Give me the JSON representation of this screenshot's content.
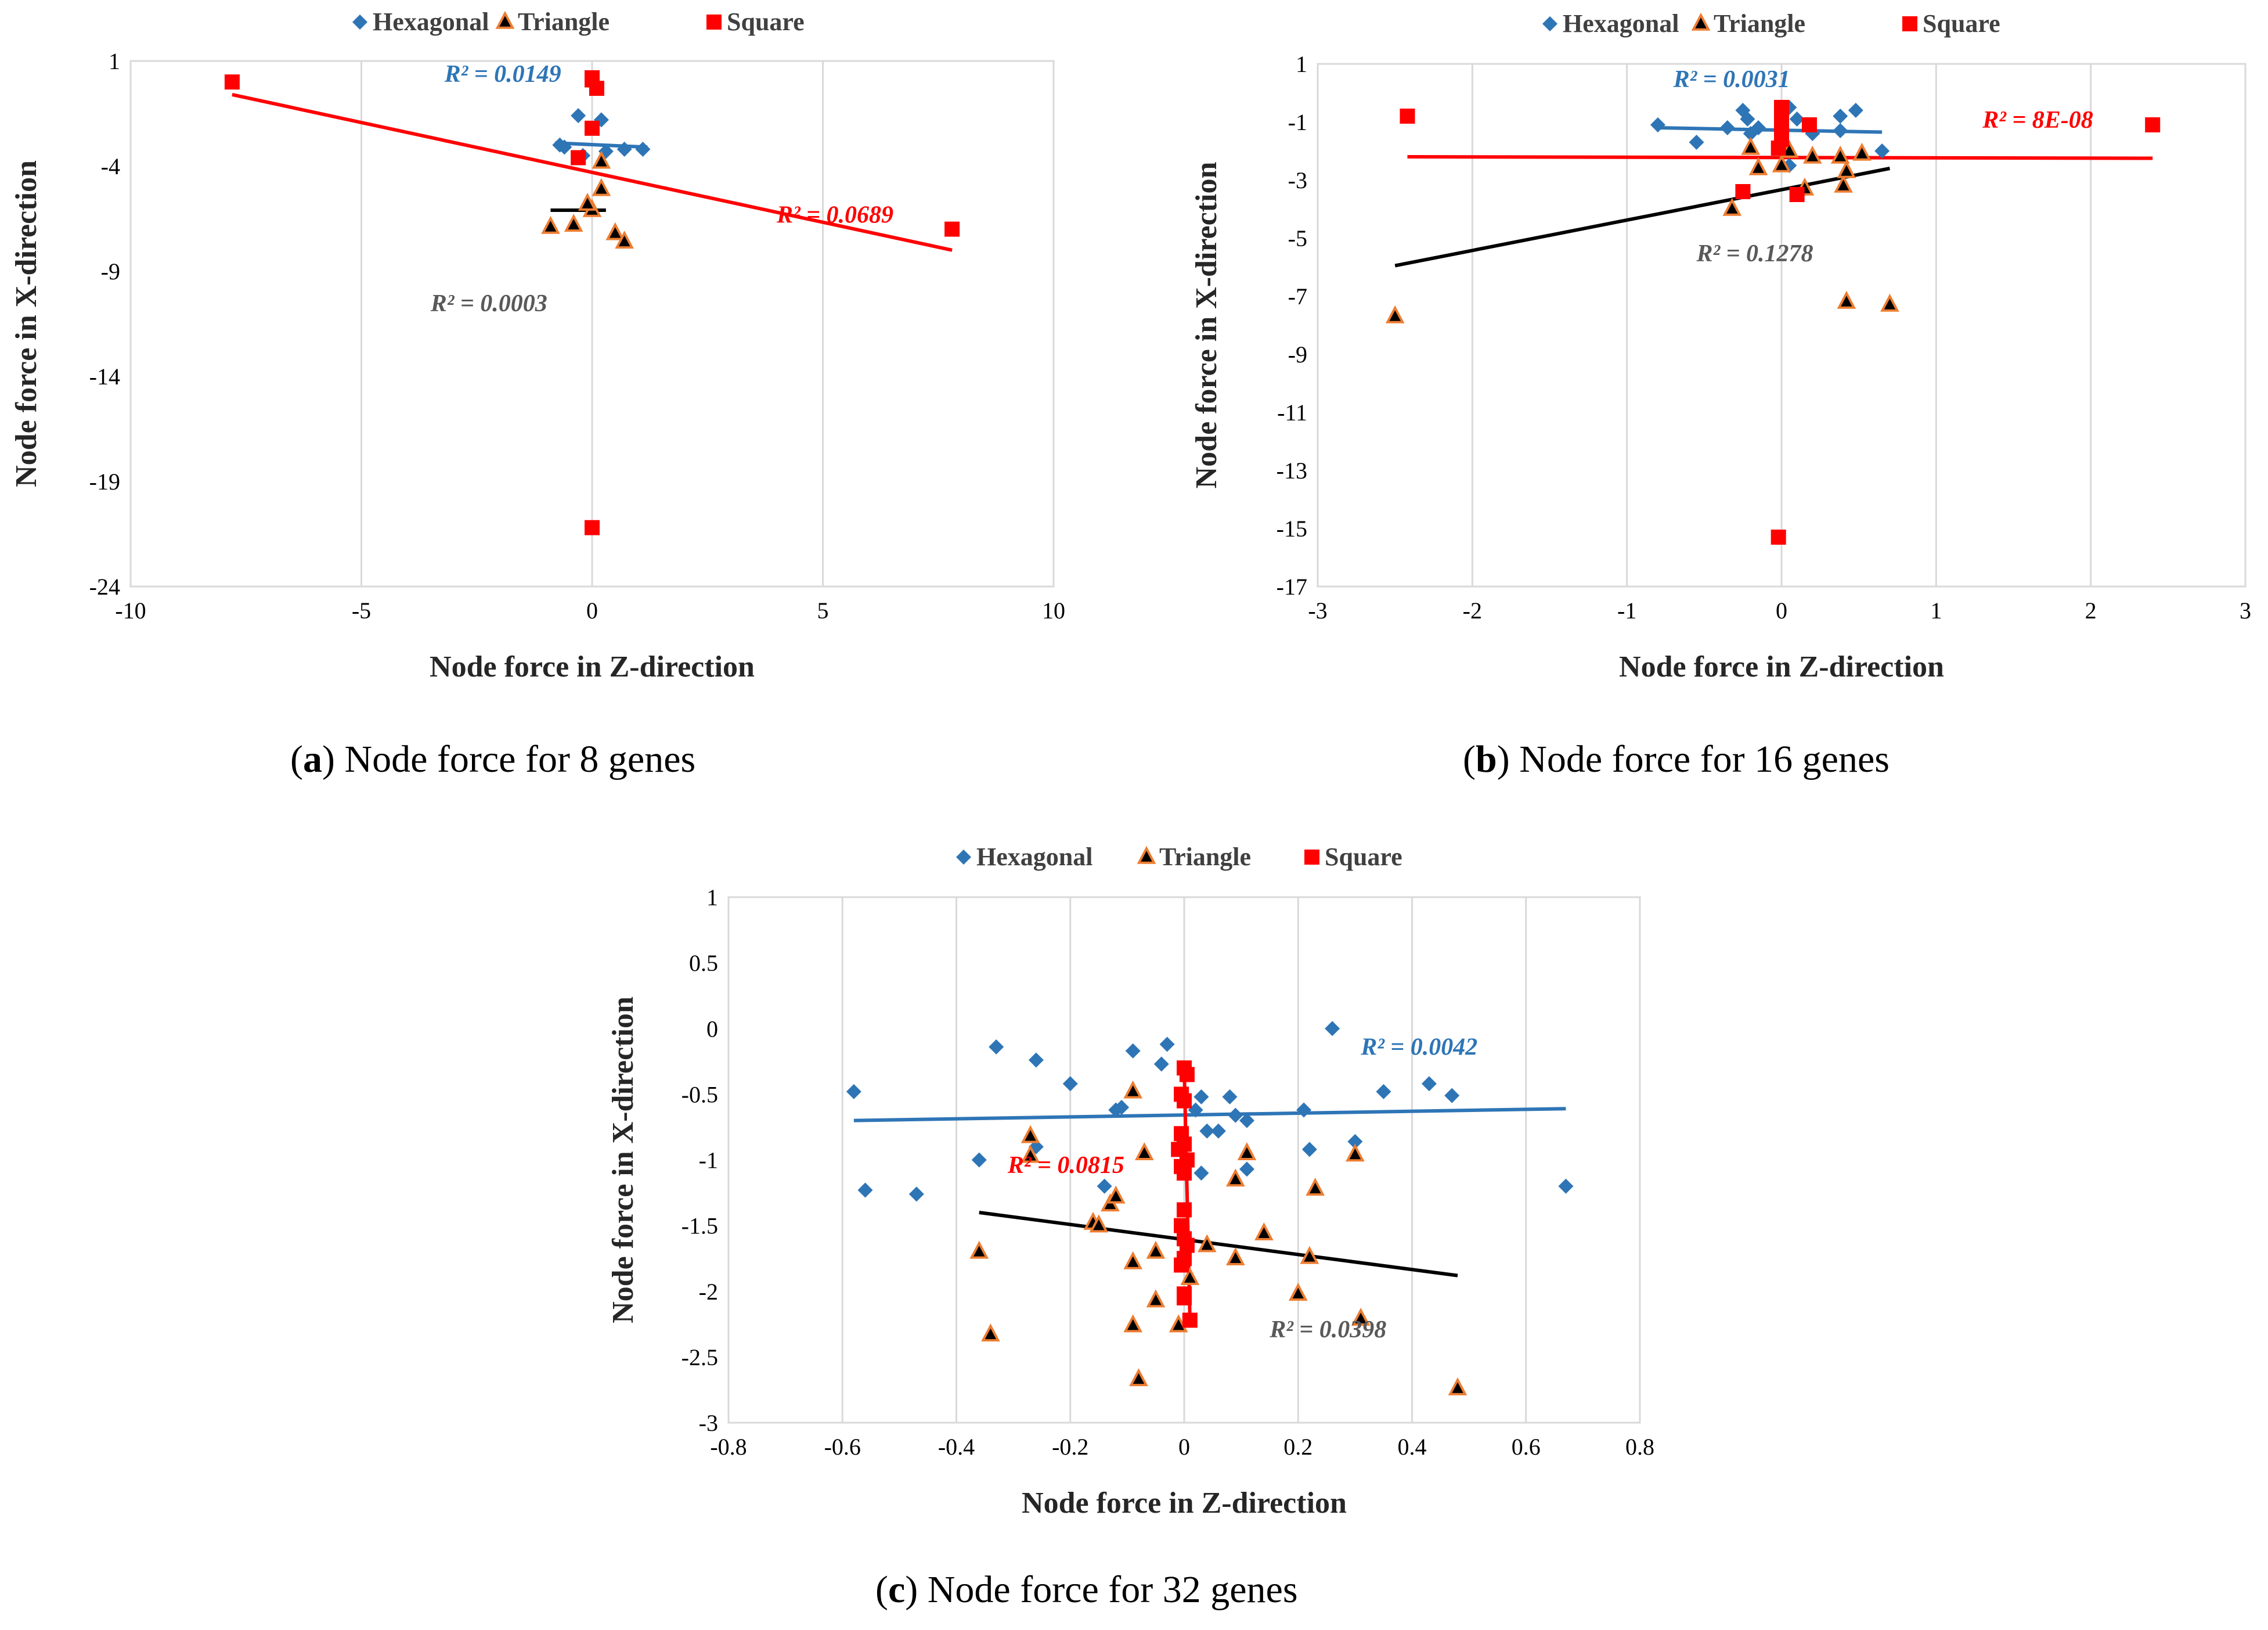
{
  "chart_data": [
    {
      "type": "scatter",
      "id": "a",
      "caption_letter": "a",
      "caption_text": "Node force for 8 genes",
      "xlabel": "Node force in Z-direction",
      "ylabel": "Node force in X-direction",
      "xlim": [
        -10,
        10
      ],
      "ylim": [
        -24,
        1
      ],
      "xticks": [
        "-10",
        "-5",
        "0",
        "5",
        "10"
      ],
      "yticks": [
        "1",
        "-4",
        "-9",
        "-14",
        "-19",
        "-24"
      ],
      "vgrid": [
        -5,
        0,
        5
      ],
      "legend": [
        "Hexagonal",
        "Triangle",
        "Square"
      ],
      "series": [
        {
          "name": "Hexagonal",
          "color": "#2e75b6",
          "marker": "diamond",
          "points": [
            [
              -0.7,
              -3.0
            ],
            [
              -0.6,
              -3.1
            ],
            [
              -0.3,
              -1.6
            ],
            [
              0.2,
              -1.8
            ],
            [
              0.7,
              -3.2
            ],
            [
              1.1,
              -3.2
            ],
            [
              -0.2,
              -3.5
            ],
            [
              0.3,
              -3.3
            ]
          ]
        },
        {
          "name": "Triangle",
          "color": "#000000",
          "stroke": "#ed7d31",
          "marker": "triangle",
          "points": [
            [
              -0.9,
              -6.9
            ],
            [
              -0.4,
              -6.8
            ],
            [
              0.0,
              -6.1
            ],
            [
              0.2,
              -3.8
            ],
            [
              0.2,
              -5.1
            ],
            [
              0.5,
              -7.2
            ],
            [
              0.7,
              -7.6
            ],
            [
              -0.1,
              -5.8
            ]
          ]
        },
        {
          "name": "Square",
          "color": "#ff0000",
          "marker": "square",
          "points": [
            [
              -7.8,
              0.0
            ],
            [
              7.8,
              -7.0
            ],
            [
              0.0,
              -21.2
            ],
            [
              0.0,
              0.2
            ],
            [
              0.1,
              -0.3
            ],
            [
              0.0,
              -2.2
            ],
            [
              -0.3,
              -3.6
            ],
            [
              0.0,
              0.1
            ]
          ]
        }
      ],
      "trendlines": [
        {
          "series": "Hexagonal",
          "color": "#2e75b6",
          "x": [
            -0.8,
            1.2
          ],
          "y": [
            -2.9,
            -3.1
          ],
          "r2": "R² = 0.0149",
          "r2_at": [
            -3.2,
            0.0
          ],
          "r2_color": "#2e75b6"
        },
        {
          "series": "Triangle",
          "color": "#000000",
          "x": [
            -0.9,
            0.3
          ],
          "y": [
            -6.1,
            -6.1
          ],
          "r2": "R² = 0.0003",
          "r2_at": [
            -3.5,
            -10.9
          ],
          "r2_color": "#595959"
        },
        {
          "series": "Square",
          "color": "#ff0000",
          "x": [
            -7.8,
            7.8
          ],
          "y": [
            -0.6,
            -8.0
          ],
          "r2": "R² = 0.0689",
          "r2_at": [
            4.0,
            -6.7
          ],
          "r2_color": "#ff0000"
        }
      ]
    },
    {
      "type": "scatter",
      "id": "b",
      "caption_letter": "b",
      "caption_text": "Node force for 16 genes",
      "xlabel": "Node force in Z-direction",
      "ylabel": "Node force in X-direction",
      "xlim": [
        -3,
        3
      ],
      "ylim": [
        -17,
        1
      ],
      "xticks": [
        "-3",
        "-2",
        "-1",
        "0",
        "1",
        "2",
        "3"
      ],
      "yticks": [
        "1",
        "-1",
        "-3",
        "-5",
        "-7",
        "-9",
        "-11",
        "-13",
        "-15",
        "-17"
      ],
      "vgrid": [
        -2,
        -1,
        0,
        1,
        2
      ],
      "legend": [
        "Hexagonal",
        "Triangle",
        "Square"
      ],
      "series": [
        {
          "name": "Hexagonal",
          "color": "#2e75b6",
          "marker": "diamond",
          "points": [
            [
              -0.8,
              -1.1
            ],
            [
              -0.55,
              -1.7
            ],
            [
              -0.35,
              -1.2
            ],
            [
              -0.25,
              -0.6
            ],
            [
              -0.22,
              -0.9
            ],
            [
              -0.2,
              -1.4
            ],
            [
              0.05,
              -0.5
            ],
            [
              0.1,
              -0.9
            ],
            [
              0.2,
              -1.4
            ],
            [
              0.38,
              -0.8
            ],
            [
              0.48,
              -0.6
            ],
            [
              0.38,
              -1.3
            ],
            [
              0.65,
              -2.0
            ],
            [
              -0.15,
              -1.2
            ],
            [
              0.0,
              -1.6
            ],
            [
              0.05,
              -2.5
            ]
          ]
        },
        {
          "name": "Triangle",
          "color": "#000000",
          "stroke": "#ed7d31",
          "marker": "triangle",
          "points": [
            [
              -2.5,
              -7.7
            ],
            [
              -0.32,
              -4.0
            ],
            [
              -0.2,
              -1.9
            ],
            [
              -0.15,
              -2.6
            ],
            [
              0.05,
              -2.0
            ],
            [
              0.15,
              -3.3
            ],
            [
              0.2,
              -2.2
            ],
            [
              0.38,
              -2.2
            ],
            [
              0.4,
              -3.2
            ],
            [
              0.42,
              -7.2
            ],
            [
              0.42,
              -2.7
            ],
            [
              0.52,
              -2.1
            ],
            [
              0.7,
              -7.3
            ],
            [
              0.0,
              -2.5
            ]
          ]
        },
        {
          "name": "Square",
          "color": "#ff0000",
          "marker": "square",
          "points": [
            [
              -2.42,
              -0.8
            ],
            [
              2.4,
              -1.1
            ],
            [
              -0.02,
              -15.3
            ],
            [
              0.0,
              -0.5
            ],
            [
              0.0,
              -0.8
            ],
            [
              0.0,
              -1.2
            ],
            [
              0.0,
              -1.6
            ],
            [
              -0.02,
              -1.9
            ],
            [
              0.18,
              -1.1
            ],
            [
              0.1,
              -3.5
            ],
            [
              -0.25,
              -3.4
            ],
            [
              0.0,
              -0.6
            ]
          ]
        }
      ],
      "trendlines": [
        {
          "series": "Hexagonal",
          "color": "#2e75b6",
          "x": [
            -0.8,
            0.65
          ],
          "y": [
            -1.2,
            -1.35
          ],
          "r2": "R² = 0.0031",
          "r2_at": [
            -0.7,
            0.2
          ],
          "r2_color": "#2e75b6"
        },
        {
          "series": "Triangle",
          "color": "#000000",
          "x": [
            -2.5,
            0.7
          ],
          "y": [
            -5.95,
            -2.6
          ],
          "r2": "R² = 0.1278",
          "r2_at": [
            -0.55,
            -5.8
          ],
          "r2_color": "#595959"
        },
        {
          "series": "Square",
          "color": "#ff0000",
          "x": [
            -2.42,
            2.4
          ],
          "y": [
            -2.2,
            -2.25
          ],
          "r2": "R² = 8E-08",
          "r2_at": [
            1.3,
            -1.2
          ],
          "r2_color": "#ff0000"
        }
      ]
    },
    {
      "type": "scatter",
      "id": "c",
      "caption_letter": "c",
      "caption_text": "Node force for 32 genes",
      "xlabel": "Node force in Z-direction",
      "ylabel": "Node force in X-direction",
      "xlim": [
        -0.8,
        0.8
      ],
      "ylim": [
        -3,
        1
      ],
      "xticks": [
        "-0.8",
        "-0.6",
        "-0.4",
        "-0.2",
        "0",
        "0.2",
        "0.4",
        "0.6",
        "0.8"
      ],
      "yticks": [
        "1",
        "0.5",
        "0",
        "-0.5",
        "-1",
        "-1.5",
        "-2",
        "-2.5",
        "-3"
      ],
      "vgrid": [
        -0.6,
        -0.4,
        -0.2,
        0,
        0.2,
        0.4,
        0.6
      ],
      "legend": [
        "Hexagonal",
        "Triangle",
        "Square"
      ],
      "series": [
        {
          "name": "Hexagonal",
          "color": "#2e75b6",
          "marker": "diamond",
          "points": [
            [
              -0.58,
              -0.48
            ],
            [
              -0.56,
              -1.23
            ],
            [
              -0.47,
              -1.26
            ],
            [
              -0.36,
              -1.0
            ],
            [
              -0.33,
              -0.14
            ],
            [
              -0.26,
              -0.24
            ],
            [
              -0.26,
              -0.9
            ],
            [
              -0.2,
              -0.42
            ],
            [
              -0.12,
              -0.62
            ],
            [
              -0.11,
              -0.6
            ],
            [
              -0.09,
              -0.17
            ],
            [
              -0.04,
              -0.27
            ],
            [
              -0.03,
              -0.12
            ],
            [
              0.02,
              -0.62
            ],
            [
              0.03,
              -0.52
            ],
            [
              0.04,
              -0.78
            ],
            [
              0.06,
              -0.78
            ],
            [
              0.08,
              -0.52
            ],
            [
              0.09,
              -0.66
            ],
            [
              0.11,
              -0.7
            ],
            [
              0.11,
              -1.07
            ],
            [
              0.03,
              -1.1
            ],
            [
              0.21,
              -0.62
            ],
            [
              0.22,
              -0.92
            ],
            [
              0.26,
              0.0
            ],
            [
              0.3,
              -0.86
            ],
            [
              0.35,
              -0.48
            ],
            [
              0.43,
              -0.42
            ],
            [
              0.47,
              -0.51
            ],
            [
              0.67,
              -1.2
            ],
            [
              -0.14,
              -1.2
            ]
          ]
        },
        {
          "name": "Triangle",
          "color": "#000000",
          "stroke": "#ed7d31",
          "marker": "triangle",
          "points": [
            [
              -0.36,
              -1.7
            ],
            [
              -0.34,
              -2.33
            ],
            [
              -0.27,
              -0.82
            ],
            [
              -0.27,
              -0.97
            ],
            [
              -0.16,
              -1.48
            ],
            [
              -0.15,
              -1.5
            ],
            [
              -0.13,
              -1.34
            ],
            [
              -0.12,
              -1.28
            ],
            [
              -0.09,
              -0.48
            ],
            [
              -0.09,
              -1.78
            ],
            [
              -0.09,
              -2.26
            ],
            [
              -0.07,
              -0.95
            ],
            [
              -0.05,
              -1.7
            ],
            [
              -0.05,
              -2.07
            ],
            [
              -0.08,
              -2.67
            ],
            [
              -0.01,
              -2.26
            ],
            [
              0.01,
              -1.9
            ],
            [
              0.04,
              -1.65
            ],
            [
              0.09,
              -1.15
            ],
            [
              0.09,
              -1.75
            ],
            [
              0.11,
              -0.95
            ],
            [
              0.14,
              -1.56
            ],
            [
              0.2,
              -2.02
            ],
            [
              0.22,
              -1.74
            ],
            [
              0.23,
              -1.22
            ],
            [
              0.3,
              -0.96
            ],
            [
              0.31,
              -2.21
            ],
            [
              0.48,
              -2.74
            ]
          ]
        },
        {
          "name": "Square",
          "color": "#ff0000",
          "marker": "square",
          "points": [
            [
              0.0,
              -0.3
            ],
            [
              0.005,
              -0.35
            ],
            [
              -0.005,
              -0.5
            ],
            [
              0.0,
              -0.55
            ],
            [
              -0.005,
              -0.8
            ],
            [
              0.0,
              -0.88
            ],
            [
              -0.01,
              -0.92
            ],
            [
              0.005,
              -1.0
            ],
            [
              -0.005,
              -1.05
            ],
            [
              0.0,
              -1.1
            ],
            [
              0.0,
              -1.38
            ],
            [
              -0.005,
              -1.5
            ],
            [
              0.0,
              -1.6
            ],
            [
              0.005,
              -1.65
            ],
            [
              0.0,
              -1.75
            ],
            [
              -0.005,
              -1.8
            ],
            [
              0.0,
              -2.02
            ],
            [
              0.0,
              -2.05
            ],
            [
              0.01,
              -2.22
            ]
          ]
        }
      ],
      "trendlines": [
        {
          "series": "Hexagonal",
          "color": "#2e75b6",
          "x": [
            -0.58,
            0.67
          ],
          "y": [
            -0.7,
            -0.61
          ],
          "r2": "R² = 0.0042",
          "r2_at": [
            0.31,
            -0.2
          ],
          "r2_color": "#2e75b6"
        },
        {
          "series": "Triangle",
          "color": "#000000",
          "x": [
            -0.36,
            0.48
          ],
          "y": [
            -1.4,
            -1.88
          ],
          "r2": "R² = 0.0398",
          "r2_at": [
            0.15,
            -2.35
          ],
          "r2_color": "#595959"
        },
        {
          "series": "Square",
          "color": "#ff0000",
          "x": [
            0.0,
            0.01
          ],
          "y": [
            -0.3,
            -2.2
          ],
          "r2": "R² = 0.0815",
          "r2_at": [
            -0.31,
            -1.1
          ],
          "r2_color": "#ff0000"
        }
      ]
    }
  ]
}
